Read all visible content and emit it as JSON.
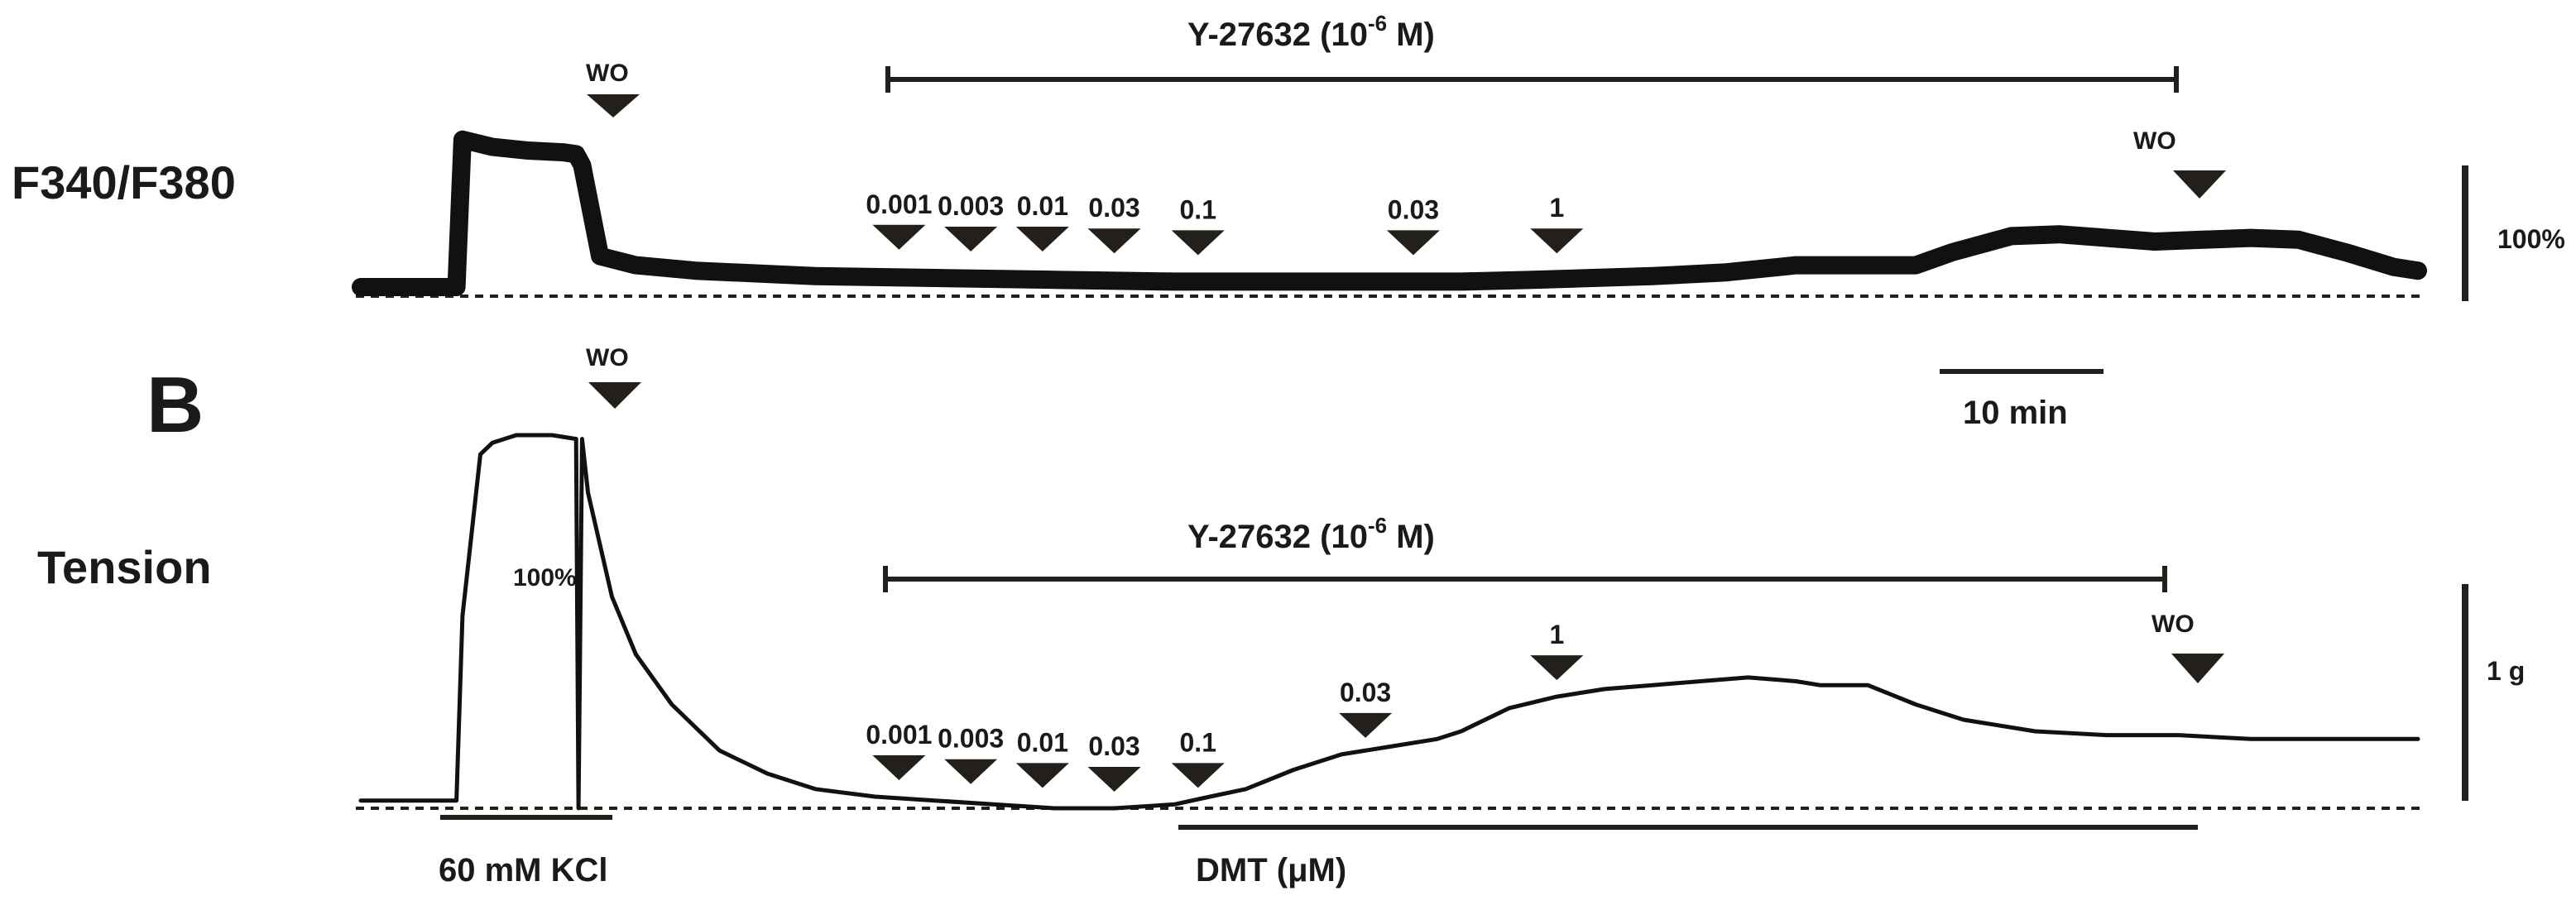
{
  "chart_data": [
    {
      "type": "line",
      "panel_label": "",
      "row_label": "F340/F380",
      "x_units": "min",
      "y_units": "% of 60 mM KCl response",
      "xlim": [
        -8,
        164
      ],
      "ylim": [
        0,
        100
      ],
      "series": [
        {
          "name": "",
          "x": [
            -8,
            0,
            0.5,
            3,
            6,
            9,
            10,
            10.5,
            12,
            15,
            20,
            30,
            40,
            50,
            60,
            70,
            80,
            84,
            90,
            100,
            106,
            112,
            118,
            122,
            125,
            130,
            134,
            138,
            142,
            146,
            150,
            154,
            158,
            162,
            164
          ],
          "y": [
            5,
            5,
            86,
            82,
            80,
            79,
            78,
            72,
            22,
            17,
            14,
            11,
            10,
            9,
            8,
            8,
            8,
            8,
            9,
            11,
            13,
            17,
            17,
            17,
            24,
            33,
            34,
            32,
            30,
            31,
            32,
            31,
            24,
            16,
            14
          ]
        }
      ],
      "annotations": {
        "kcl_washout": "WO",
        "drug_bar": "Y-27632 (10-6 M)",
        "drug_bar_superscript_base": "Y-27632 (10",
        "drug_bar_exponent": "-6",
        "drug_bar_tail": " M)",
        "doses": [
          "0.001",
          "0.003",
          "0.01",
          "0.03",
          "0.1",
          "0.03",
          "1"
        ],
        "dose_times_min": [
          37,
          43,
          49,
          55,
          62,
          80,
          92
        ],
        "final_washout": "WO",
        "final_washout_time_min": 114,
        "scale_label": "100%",
        "time_scale_label": "10 min"
      }
    },
    {
      "type": "line",
      "panel_label": "B",
      "row_label": "Tension",
      "x_units": "min",
      "y_units": "% of 60 mM KCl contraction",
      "xlim": [
        -8,
        164
      ],
      "ylim": [
        0,
        100
      ],
      "series": [
        {
          "name": "",
          "x": [
            -8,
            0,
            0.5,
            2,
            3,
            5,
            8,
            10,
            10.2,
            10.5,
            11,
            13,
            15,
            18,
            22,
            26,
            30,
            35,
            40,
            45,
            50,
            55,
            60,
            63,
            66,
            70,
            74,
            78,
            82,
            84,
            88,
            92,
            96,
            100,
            104,
            108,
            112,
            114,
            118,
            122,
            126,
            132,
            138,
            144,
            150,
            156,
            162,
            164
          ],
          "y": [
            2,
            2,
            50,
            92,
            95,
            97,
            97,
            96,
            0,
            96,
            82,
            55,
            40,
            27,
            15,
            9,
            5,
            3,
            2,
            1,
            0,
            0,
            1,
            3,
            5,
            10,
            14,
            16,
            18,
            20,
            26,
            29,
            31,
            32,
            33,
            34,
            33,
            32,
            32,
            27,
            23,
            20,
            19,
            19,
            18,
            18,
            18,
            18
          ]
        }
      ],
      "annotations": {
        "kcl_washout": "WO",
        "kcl_bar": "60 mM KCl",
        "kcl_response": "100%",
        "drug_bar": "Y-27632 (10-6 M)",
        "drug_bar_superscript_base": "Y-27632 (10",
        "drug_bar_exponent": "-6",
        "drug_bar_tail": " M)",
        "doses": [
          "0.001",
          "0.003",
          "0.01",
          "0.03",
          "0.1",
          "0.03",
          "1"
        ],
        "dose_times_min": [
          37,
          43,
          49,
          55,
          62,
          76,
          92
        ],
        "final_washout": "WO",
        "final_washout_time_min": 115,
        "dmt_bar": "DMT (μM)",
        "scale_label": "1 g"
      }
    }
  ]
}
